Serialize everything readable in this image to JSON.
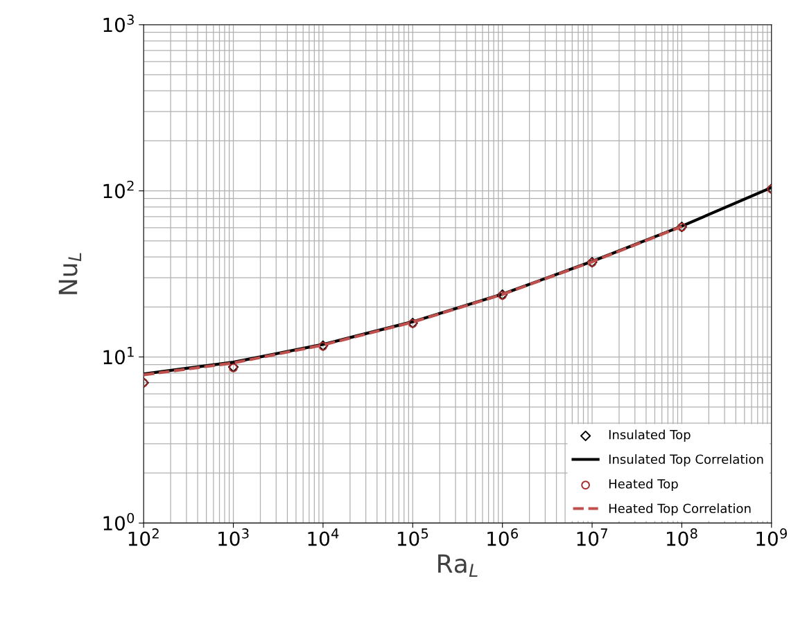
{
  "chart_data": {
    "type": "scatter",
    "xlabel": "Ra$_{L}$",
    "ylabel": "Nu$_{L}$",
    "log": "xy",
    "grid": true,
    "legend": "bottom right",
    "xlim": [
      100,
      1000000000
    ],
    "ylim": [
      1,
      1000
    ],
    "xticks": [
      {
        "value": 100,
        "label": "10$^{2}$"
      },
      {
        "value": 1000,
        "label": "10$^{3}$"
      },
      {
        "value": 10000,
        "label": "10$^{4}$"
      },
      {
        "value": 100000,
        "label": "10$^{5}$"
      },
      {
        "value": 1000000,
        "label": "10$^{6}$"
      },
      {
        "value": 10000000,
        "label": "10$^{7}$"
      },
      {
        "value": 100000000,
        "label": "10$^{8}$"
      },
      {
        "value": 1000000000,
        "label": "10$^{9}$"
      }
    ],
    "yticks": [
      {
        "value": 1,
        "label": "10$^{0}$"
      },
      {
        "value": 10,
        "label": "10$^{1}$"
      },
      {
        "value": 100,
        "label": "10$^{2}$"
      },
      {
        "value": 1000,
        "label": "10$^{3}$"
      }
    ],
    "x": [
      100,
      1000,
      10000,
      100000,
      1000000,
      10000000,
      100000000,
      1000000000
    ],
    "series": [
      {
        "name": "Insulated Top",
        "marker": "diamond",
        "color": "#000000",
        "values": [
          7.0,
          8.7,
          11.7,
          16.0,
          23.7,
          37.2,
          60.7,
          102.9
        ]
      },
      {
        "name": "Insulated Top Correlation",
        "type": "line",
        "marker": "none",
        "line_style": "solid",
        "color": "#000000",
        "values": [
          7.9,
          9.3,
          11.9,
          16.3,
          23.9,
          37.6,
          61.3,
          104.8
        ]
      },
      {
        "name": "Heated Top",
        "marker": "circle",
        "color": "#a52a2a",
        "values": [
          7.0,
          8.6,
          11.6,
          15.9,
          23.5,
          37.0,
          60.5,
          102.5
        ]
      },
      {
        "name": "Heated Top Correlation",
        "type": "line",
        "marker": "none",
        "line_style": "dashed",
        "color": "#c0504d",
        "x": [
          100,
          1000,
          10000,
          100000,
          1000000,
          10000000,
          100000000
        ],
        "values": [
          7.8,
          9.2,
          11.8,
          16.2,
          23.8,
          37.4,
          61.0
        ]
      }
    ]
  }
}
